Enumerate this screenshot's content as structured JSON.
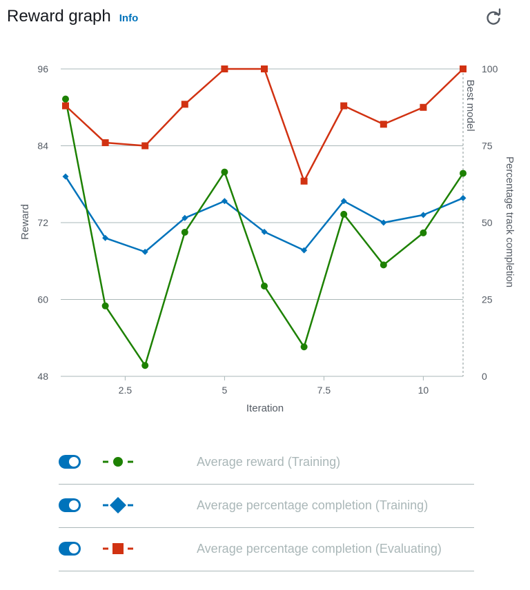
{
  "header": {
    "title": "Reward graph",
    "info_label": "Info"
  },
  "legend": {
    "items": [
      {
        "label": "Average reward (Training)",
        "color": "#1d8102",
        "marker": "circle",
        "enabled": true
      },
      {
        "label": "Average percentage completion (Training)",
        "color": "#0073bb",
        "marker": "diamond",
        "enabled": true
      },
      {
        "label": "Average percentage completion (Evaluating)",
        "color": "#d13212",
        "marker": "square",
        "enabled": true
      }
    ]
  },
  "chart_data": {
    "type": "line",
    "xlabel": "Iteration",
    "ylabel": "Reward",
    "y2label": "Percentage track completion",
    "xlim": [
      1,
      11
    ],
    "ylim": [
      48,
      96
    ],
    "y2lim": [
      0,
      100
    ],
    "xticks": [
      "2.5",
      "5",
      "7.5",
      "10"
    ],
    "xtick_values": [
      2.5,
      5,
      7.5,
      10
    ],
    "yticks": [
      "48",
      "60",
      "72",
      "84",
      "96"
    ],
    "ytick_values": [
      48,
      60,
      72,
      84,
      96
    ],
    "y2ticks": [
      "0",
      "25",
      "50",
      "75",
      "100"
    ],
    "y2tick_values": [
      0,
      25,
      50,
      75,
      100
    ],
    "marker_line": {
      "x": 11,
      "label": "Best model"
    },
    "grid": true,
    "x": [
      1,
      2,
      3,
      4,
      5,
      6,
      7,
      8,
      9,
      10,
      11
    ],
    "series": [
      {
        "name": "Average reward (Training)",
        "axis": "left",
        "color": "#1d8102",
        "marker": "circle",
        "values": [
          91.3,
          59.0,
          49.7,
          70.5,
          79.9,
          62.1,
          52.6,
          73.3,
          65.4,
          70.4,
          79.7
        ]
      },
      {
        "name": "Average percentage completion (Training)",
        "axis": "right",
        "color": "#0073bb",
        "marker": "diamond",
        "values": [
          65,
          45,
          40.5,
          51.5,
          57,
          47,
          41,
          57,
          50,
          52.5,
          58
        ]
      },
      {
        "name": "Average percentage completion (Evaluating)",
        "axis": "right",
        "color": "#d13212",
        "marker": "square",
        "values": [
          88,
          76,
          75,
          88.5,
          100,
          100,
          63.5,
          88,
          82,
          87.5,
          100
        ]
      }
    ]
  }
}
